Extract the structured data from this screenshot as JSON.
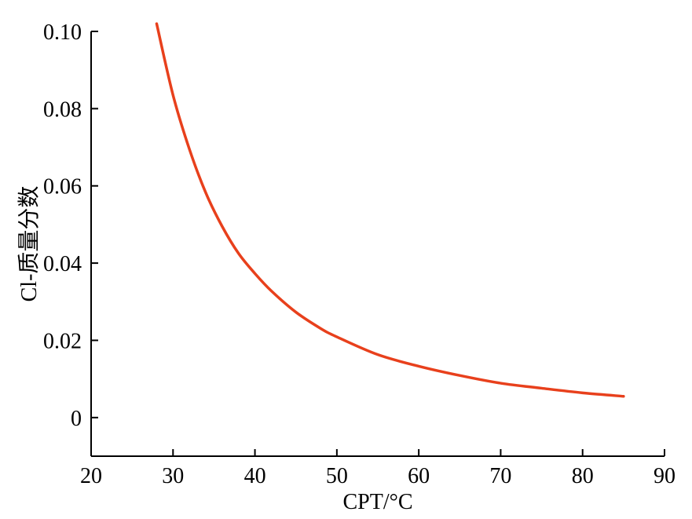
{
  "chart_data": {
    "type": "line",
    "xlabel": "CPT/°C",
    "ylabel": "Cl-质量分数",
    "xlim": [
      20,
      90
    ],
    "ylim": [
      -0.01,
      0.1
    ],
    "xticks": [
      20,
      30,
      40,
      50,
      60,
      70,
      80,
      90
    ],
    "yticks": [
      0,
      0.02,
      0.04,
      0.06,
      0.08,
      0.1
    ],
    "xtick_labels": [
      "20",
      "30",
      "40",
      "50",
      "60",
      "70",
      "80",
      "90"
    ],
    "ytick_labels": [
      "0",
      "0.02",
      "0.04",
      "0.06",
      "0.08",
      "0.10"
    ],
    "grid": false,
    "series": [
      {
        "color": "#e8401c",
        "x": [
          28,
          30,
          32,
          34,
          36,
          38,
          40,
          42,
          45,
          48,
          50,
          55,
          60,
          65,
          70,
          75,
          80,
          85
        ],
        "y": [
          0.102,
          0.0835,
          0.0695,
          0.0582,
          0.0495,
          0.0425,
          0.0373,
          0.0328,
          0.0273,
          0.0231,
          0.0209,
          0.0163,
          0.0133,
          0.0109,
          0.0089,
          0.0076,
          0.0064,
          0.0055
        ]
      }
    ]
  }
}
